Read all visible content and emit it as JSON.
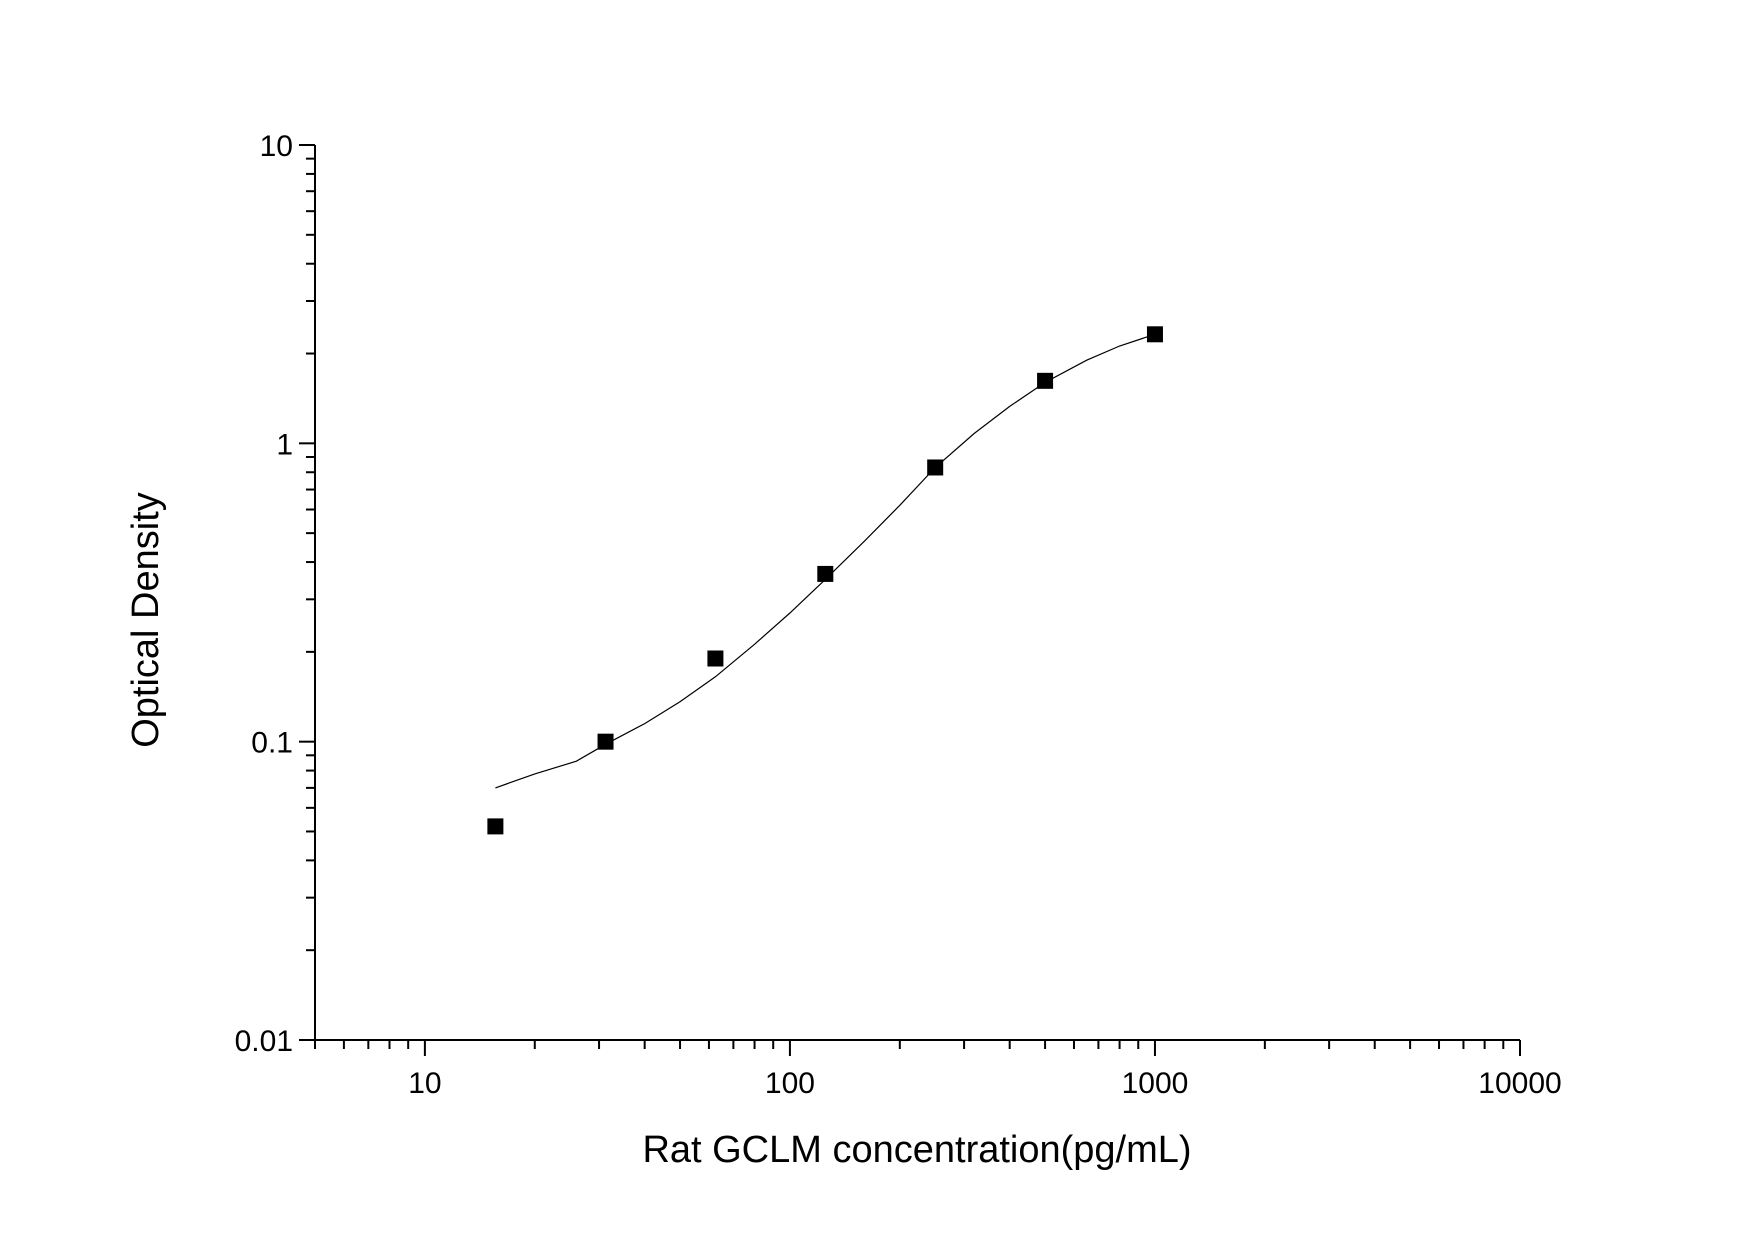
{
  "chart_data": {
    "type": "scatter",
    "title": "",
    "xlabel": "Rat GCLM concentration(pg/mL)",
    "ylabel": "Optical Density",
    "xscale": "log",
    "yscale": "log",
    "xlim": [
      5,
      10000
    ],
    "ylim": [
      0.01,
      10
    ],
    "x_tick_labels": [
      "10",
      "100",
      "1000",
      "10000"
    ],
    "y_tick_labels": [
      "0.01",
      "0.1",
      "1",
      "10"
    ],
    "grid": false,
    "legend": "none",
    "series": [
      {
        "type": "scatter",
        "marker": "square",
        "x": [
          15.6,
          31.25,
          62.5,
          125,
          250,
          500,
          1000
        ],
        "y": [
          0.052,
          0.1,
          0.19,
          0.365,
          0.83,
          1.62,
          2.32
        ]
      },
      {
        "type": "line",
        "x": [
          15.6,
          20,
          26,
          31.25,
          40,
          50,
          62.5,
          80,
          100,
          125,
          160,
          200,
          250,
          320,
          400,
          500,
          650,
          800,
          1000
        ],
        "y": [
          0.07,
          0.078,
          0.086,
          0.098,
          0.115,
          0.136,
          0.165,
          0.212,
          0.27,
          0.35,
          0.47,
          0.62,
          0.83,
          1.08,
          1.33,
          1.6,
          1.9,
          2.12,
          2.32
        ]
      }
    ]
  }
}
